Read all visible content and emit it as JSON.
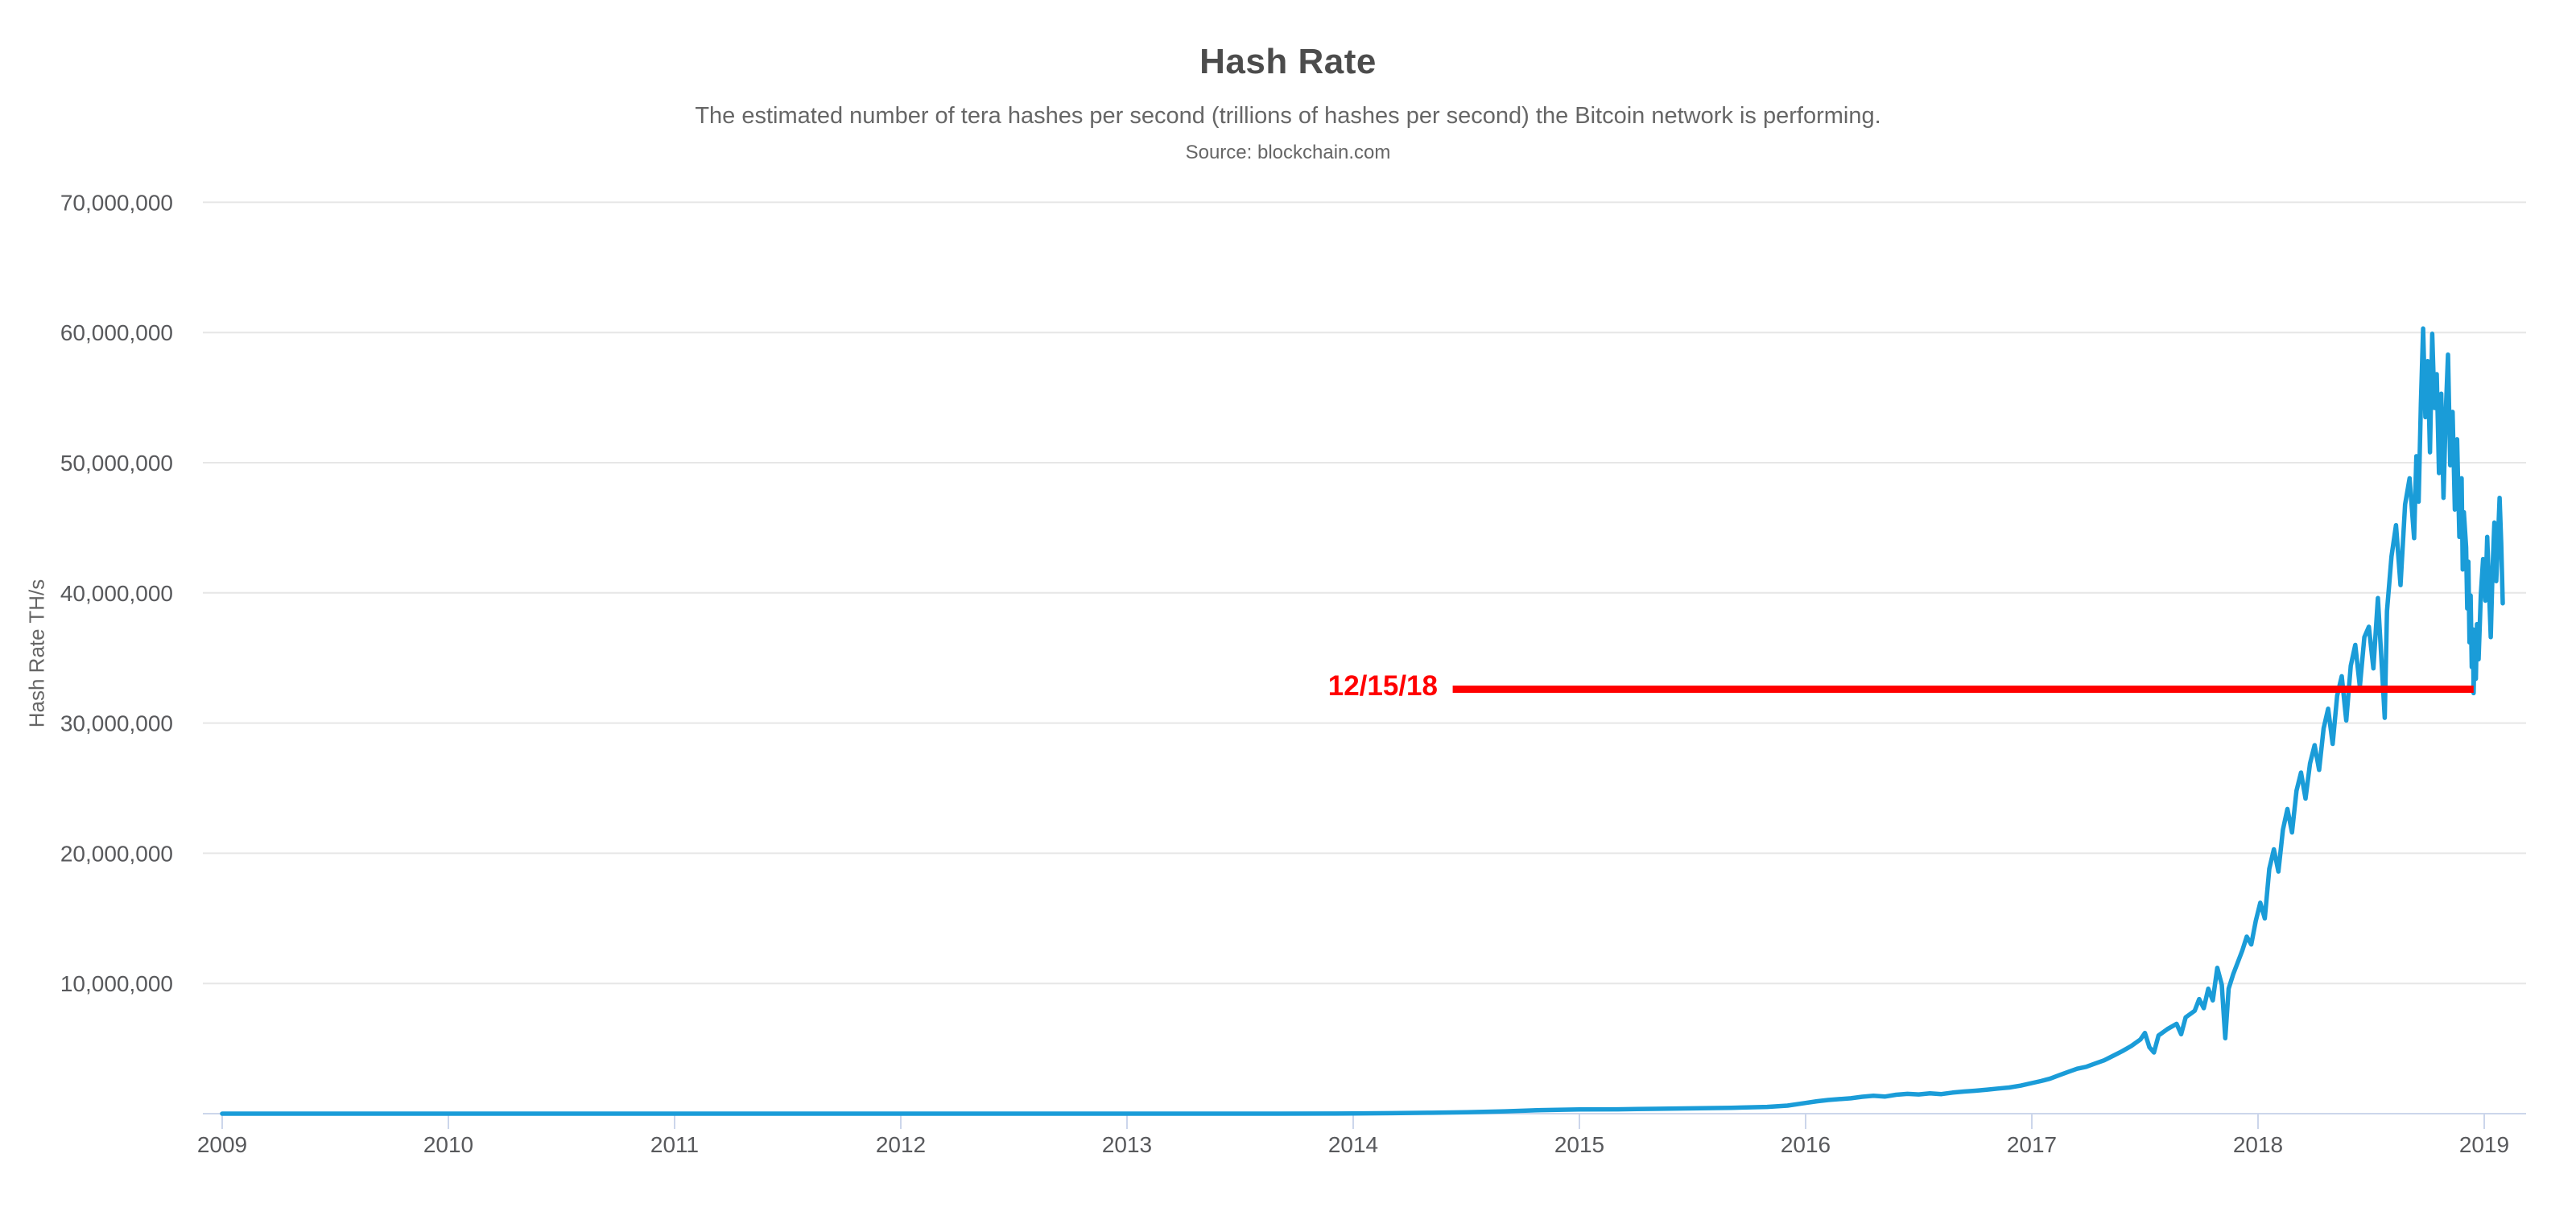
{
  "header": {
    "title": "Hash Rate",
    "subtitle": "The estimated number of tera hashes per second (trillions of hashes per second) the Bitcoin network is performing.",
    "source": "Source: blockchain.com"
  },
  "colors": {
    "series_blue": "#1a9cd8",
    "annotation_red": "#ff0000",
    "gridline": "#e6e6e6",
    "axis_line": "#ccd6eb",
    "tick_label": "#58595c",
    "title_text": "#4c4c4c",
    "subtitle_text": "#666666",
    "background": "#ffffff"
  },
  "chart_data": {
    "type": "line",
    "title": "Hash Rate",
    "subtitle": "The estimated number of tera hashes per second (trillions of hashes per second) the Bitcoin network is performing.",
    "source": "Source: blockchain.com",
    "xlabel": "",
    "ylabel": "Hash Rate TH/s",
    "x_format": "decimal year",
    "y_unit": "TH/s",
    "xlim": [
      2008.91,
      2019.19
    ],
    "ylim": [
      0,
      70000000
    ],
    "grid": "horizontal-only",
    "legend": "none",
    "y_ticks": [
      {
        "value": 10000000,
        "label": "10,000,000"
      },
      {
        "value": 20000000,
        "label": "20,000,000"
      },
      {
        "value": 30000000,
        "label": "30,000,000"
      },
      {
        "value": 40000000,
        "label": "40,000,000"
      },
      {
        "value": 50000000,
        "label": "50,000,000"
      },
      {
        "value": 60000000,
        "label": "60,000,000"
      },
      {
        "value": 70000000,
        "label": "70,000,000"
      }
    ],
    "x_ticks": [
      {
        "value": 2009,
        "label": "2009"
      },
      {
        "value": 2010,
        "label": "2010"
      },
      {
        "value": 2011,
        "label": "2011"
      },
      {
        "value": 2012,
        "label": "2012"
      },
      {
        "value": 2013,
        "label": "2013"
      },
      {
        "value": 2014,
        "label": "2014"
      },
      {
        "value": 2015,
        "label": "2015"
      },
      {
        "value": 2016,
        "label": "2016"
      },
      {
        "value": 2017,
        "label": "2017"
      },
      {
        "value": 2018,
        "label": "2018"
      },
      {
        "value": 2019,
        "label": "2019"
      }
    ],
    "annotation": {
      "label": "12/15/18",
      "value": 32600000,
      "line_start_year": 2014.44,
      "line_end_year": 2018.953,
      "color": "#ff0000"
    },
    "series": [
      {
        "name": "Hash Rate TH/s",
        "color": "#1a9cd8",
        "points": [
          [
            2009.0,
            0.0001
          ],
          [
            2009.5,
            0.001
          ],
          [
            2010.0,
            0.01
          ],
          [
            2010.5,
            0.15
          ],
          [
            2011.0,
            2
          ],
          [
            2011.33,
            13
          ],
          [
            2011.67,
            11
          ],
          [
            2012.0,
            9
          ],
          [
            2012.5,
            15
          ],
          [
            2013.0,
            25
          ],
          [
            2013.33,
            60
          ],
          [
            2013.67,
            1500
          ],
          [
            2013.92,
            7000
          ],
          [
            2014.0,
            15000
          ],
          [
            2014.17,
            35000
          ],
          [
            2014.33,
            65000
          ],
          [
            2014.5,
            110000
          ],
          [
            2014.67,
            180000
          ],
          [
            2014.83,
            270000
          ],
          [
            2015.0,
            320000
          ],
          [
            2015.17,
            335000
          ],
          [
            2015.33,
            370000
          ],
          [
            2015.5,
            410000
          ],
          [
            2015.67,
            450000
          ],
          [
            2015.83,
            520000
          ],
          [
            2015.92,
            620000
          ],
          [
            2016.0,
            820000
          ],
          [
            2016.05,
            950000
          ],
          [
            2016.1,
            1050000
          ],
          [
            2016.15,
            1120000
          ],
          [
            2016.2,
            1180000
          ],
          [
            2016.25,
            1300000
          ],
          [
            2016.3,
            1380000
          ],
          [
            2016.35,
            1310000
          ],
          [
            2016.4,
            1450000
          ],
          [
            2016.45,
            1520000
          ],
          [
            2016.5,
            1480000
          ],
          [
            2016.55,
            1560000
          ],
          [
            2016.6,
            1500000
          ],
          [
            2016.65,
            1620000
          ],
          [
            2016.7,
            1700000
          ],
          [
            2016.75,
            1760000
          ],
          [
            2016.8,
            1840000
          ],
          [
            2016.85,
            1930000
          ],
          [
            2016.9,
            2010000
          ],
          [
            2016.95,
            2150000
          ],
          [
            2017.0,
            2350000
          ],
          [
            2017.04,
            2500000
          ],
          [
            2017.08,
            2680000
          ],
          [
            2017.12,
            2950000
          ],
          [
            2017.16,
            3200000
          ],
          [
            2017.2,
            3450000
          ],
          [
            2017.24,
            3600000
          ],
          [
            2017.28,
            3850000
          ],
          [
            2017.32,
            4100000
          ],
          [
            2017.36,
            4450000
          ],
          [
            2017.4,
            4800000
          ],
          [
            2017.44,
            5200000
          ],
          [
            2017.48,
            5700000
          ],
          [
            2017.5,
            6200000
          ],
          [
            2017.52,
            5100000
          ],
          [
            2017.54,
            4700000
          ],
          [
            2017.56,
            6000000
          ],
          [
            2017.6,
            6500000
          ],
          [
            2017.64,
            6900000
          ],
          [
            2017.66,
            6100000
          ],
          [
            2017.68,
            7400000
          ],
          [
            2017.72,
            7900000
          ],
          [
            2017.74,
            8800000
          ],
          [
            2017.76,
            8100000
          ],
          [
            2017.78,
            9600000
          ],
          [
            2017.8,
            8700000
          ],
          [
            2017.82,
            11200000
          ],
          [
            2017.84,
            9900000
          ],
          [
            2017.855,
            5800000
          ],
          [
            2017.87,
            9600000
          ],
          [
            2017.89,
            10700000
          ],
          [
            2017.91,
            11600000
          ],
          [
            2017.93,
            12500000
          ],
          [
            2017.95,
            13600000
          ],
          [
            2017.97,
            13000000
          ],
          [
            2017.99,
            14800000
          ],
          [
            2018.01,
            16200000
          ],
          [
            2018.03,
            15000000
          ],
          [
            2018.05,
            18800000
          ],
          [
            2018.07,
            20300000
          ],
          [
            2018.09,
            18600000
          ],
          [
            2018.11,
            21800000
          ],
          [
            2018.13,
            23400000
          ],
          [
            2018.15,
            21600000
          ],
          [
            2018.17,
            24800000
          ],
          [
            2018.19,
            26200000
          ],
          [
            2018.21,
            24200000
          ],
          [
            2018.23,
            26900000
          ],
          [
            2018.25,
            28300000
          ],
          [
            2018.27,
            26400000
          ],
          [
            2018.29,
            29600000
          ],
          [
            2018.31,
            31100000
          ],
          [
            2018.33,
            28400000
          ],
          [
            2018.35,
            32100000
          ],
          [
            2018.37,
            33600000
          ],
          [
            2018.39,
            30200000
          ],
          [
            2018.41,
            34400000
          ],
          [
            2018.43,
            36000000
          ],
          [
            2018.45,
            32800000
          ],
          [
            2018.47,
            36600000
          ],
          [
            2018.49,
            37400000
          ],
          [
            2018.51,
            34200000
          ],
          [
            2018.53,
            39600000
          ],
          [
            2018.55,
            33600000
          ],
          [
            2018.56,
            30400000
          ],
          [
            2018.57,
            38600000
          ],
          [
            2018.59,
            42800000
          ],
          [
            2018.61,
            45200000
          ],
          [
            2018.63,
            40600000
          ],
          [
            2018.65,
            46800000
          ],
          [
            2018.67,
            48800000
          ],
          [
            2018.69,
            44200000
          ],
          [
            2018.7,
            50500000
          ],
          [
            2018.71,
            47000000
          ],
          [
            2018.72,
            54500000
          ],
          [
            2018.73,
            60300000
          ],
          [
            2018.74,
            53500000
          ],
          [
            2018.75,
            57800000
          ],
          [
            2018.76,
            50800000
          ],
          [
            2018.77,
            59900000
          ],
          [
            2018.78,
            54200000
          ],
          [
            2018.79,
            56800000
          ],
          [
            2018.8,
            49200000
          ],
          [
            2018.81,
            55300000
          ],
          [
            2018.82,
            47300000
          ],
          [
            2018.83,
            53800000
          ],
          [
            2018.84,
            58300000
          ],
          [
            2018.85,
            49800000
          ],
          [
            2018.86,
            53900000
          ],
          [
            2018.87,
            46400000
          ],
          [
            2018.88,
            51800000
          ],
          [
            2018.89,
            44300000
          ],
          [
            2018.9,
            48800000
          ],
          [
            2018.905,
            41800000
          ],
          [
            2018.91,
            46200000
          ],
          [
            2018.92,
            43500000
          ],
          [
            2018.925,
            38800000
          ],
          [
            2018.93,
            42400000
          ],
          [
            2018.935,
            36200000
          ],
          [
            2018.94,
            39800000
          ],
          [
            2018.945,
            34300000
          ],
          [
            2018.95,
            37200000
          ],
          [
            2018.953,
            32300000
          ],
          [
            2018.958,
            36400000
          ],
          [
            2018.963,
            33400000
          ],
          [
            2018.968,
            37600000
          ],
          [
            2018.975,
            34900000
          ],
          [
            2018.985,
            39900000
          ],
          [
            2018.995,
            42600000
          ],
          [
            2019.005,
            39400000
          ],
          [
            2019.013,
            44300000
          ],
          [
            2019.021,
            40400000
          ],
          [
            2019.029,
            36600000
          ],
          [
            2019.037,
            41900000
          ],
          [
            2019.045,
            45400000
          ],
          [
            2019.053,
            40900000
          ],
          [
            2019.061,
            44100000
          ],
          [
            2019.068,
            47300000
          ],
          [
            2019.075,
            43800000
          ],
          [
            2019.082,
            39200000
          ]
        ]
      }
    ]
  }
}
